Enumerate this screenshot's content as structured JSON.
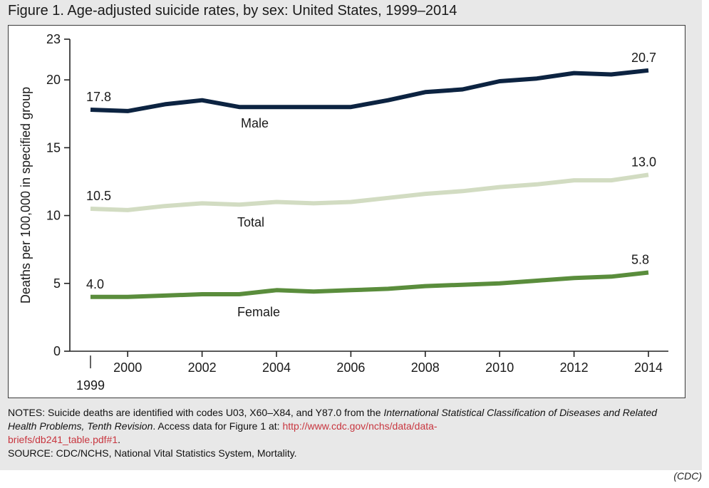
{
  "title": "Figure 1. Age-adjusted suicide rates, by sex: United States, 1999–2014",
  "notes": {
    "prefix": "NOTES: Suicide deaths are identified with codes U03, X60–X84, and Y87.0 from the ",
    "italic_source": "International Statistical Classification of Diseases and Related Health Problems, Tenth Revision",
    "access_text": ". Access data for Figure 1 at: ",
    "link": "http://www.cdc.gov/nchs/data/databriefs/db241_table.pdf#1",
    "link_line1": "http://www.cdc.gov/nchs/data/data-",
    "link_line2": "briefs/db241_table.pdf#1",
    "link_end": ".",
    "source": "SOURCE: CDC/NCHS, National Vital Statistics System, Mortality."
  },
  "credit": "(CDC)",
  "chart_data": {
    "type": "line",
    "ylabel": "Deaths per 100,000 in specified group",
    "xlabel": "",
    "ylim": [
      0,
      23
    ],
    "yticks": [
      0,
      5,
      10,
      15,
      20,
      23
    ],
    "xlim": [
      1999,
      2014
    ],
    "xticks": [
      {
        "value": 1999,
        "label": "1999"
      },
      {
        "value": 2000,
        "label": "2000"
      },
      {
        "value": 2002,
        "label": "2002"
      },
      {
        "value": 2004,
        "label": "2004"
      },
      {
        "value": 2006,
        "label": "2006"
      },
      {
        "value": 2008,
        "label": "2008"
      },
      {
        "value": 2010,
        "label": "2010"
      },
      {
        "value": 2012,
        "label": "2012"
      },
      {
        "value": 2014,
        "label": "2014"
      }
    ],
    "x": [
      1999,
      2000,
      2001,
      2002,
      2003,
      2004,
      2005,
      2006,
      2007,
      2008,
      2009,
      2010,
      2011,
      2012,
      2013,
      2014
    ],
    "series": [
      {
        "name": "Male",
        "color": "#0c2341",
        "values": [
          17.8,
          17.7,
          18.2,
          18.5,
          18.0,
          18.0,
          18.0,
          18.0,
          18.5,
          19.1,
          19.3,
          19.9,
          20.1,
          20.5,
          20.4,
          20.7
        ],
        "start_label": "17.8",
        "end_label": "20.7"
      },
      {
        "name": "Total",
        "color": "#d2dcc2",
        "values": [
          10.5,
          10.4,
          10.7,
          10.9,
          10.8,
          11.0,
          10.9,
          11.0,
          11.3,
          11.6,
          11.8,
          12.1,
          12.3,
          12.6,
          12.6,
          13.0
        ],
        "start_label": "10.5",
        "end_label": "13.0"
      },
      {
        "name": "Female",
        "color": "#5a8d3c",
        "values": [
          4.0,
          4.0,
          4.1,
          4.2,
          4.2,
          4.5,
          4.4,
          4.5,
          4.6,
          4.8,
          4.9,
          5.0,
          5.2,
          5.4,
          5.5,
          5.8
        ],
        "start_label": "4.0",
        "end_label": "5.8"
      }
    ],
    "grid": false
  }
}
